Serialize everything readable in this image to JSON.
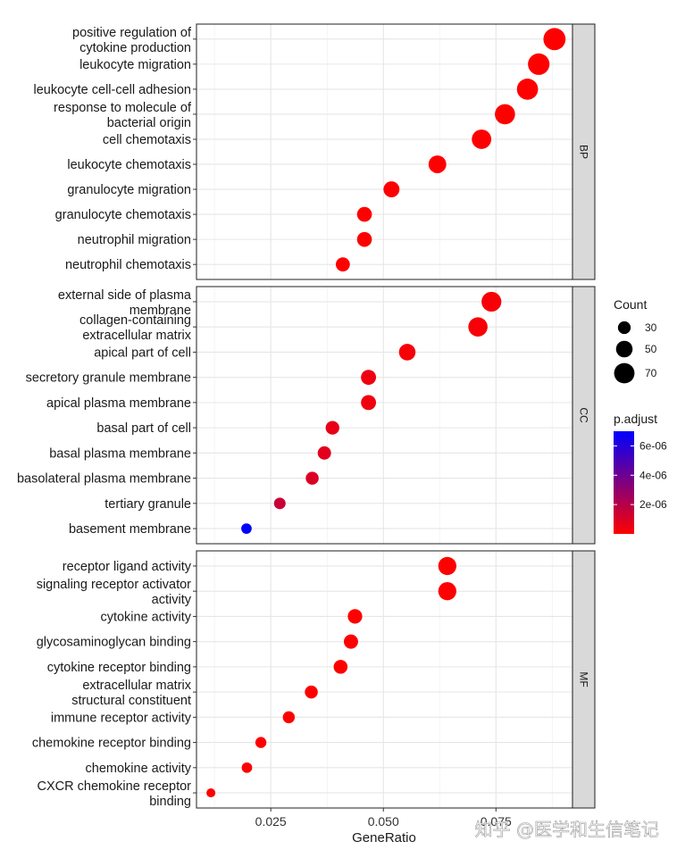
{
  "chart_data": {
    "type": "scatter",
    "title": "",
    "xlabel": "GeneRatio",
    "ylabel": "",
    "xlim": [
      0.0085,
      0.092
    ],
    "x_ticks": [
      0.025,
      0.05,
      0.075
    ],
    "x_tick_labels": [
      "0.025",
      "0.050",
      "0.075"
    ],
    "size_legend": {
      "title": "Count",
      "values": [
        30,
        50,
        70
      ],
      "labels": [
        "30",
        "50",
        "70"
      ]
    },
    "color_legend": {
      "title": "p.adjust",
      "low_color": "#ff0000",
      "high_color": "#0000ff",
      "range": [
        1e-10,
        7e-06
      ],
      "ticks": [
        2e-06,
        4e-06,
        6e-06
      ],
      "tick_labels": [
        "2e-06",
        "4e-06",
        "6e-06"
      ]
    },
    "facets": [
      {
        "name": "BP",
        "terms": [
          {
            "label": [
              "positive regulation of",
              "cytokine production"
            ],
            "gene_ratio": 0.088,
            "count": 79,
            "p_adjust": 1e-10
          },
          {
            "label": [
              "leukocyte migration"
            ],
            "gene_ratio": 0.0845,
            "count": 76,
            "p_adjust": 1e-10
          },
          {
            "label": [
              "leukocyte cell-cell adhesion"
            ],
            "gene_ratio": 0.082,
            "count": 74,
            "p_adjust": 1e-10
          },
          {
            "label": [
              "response to molecule of",
              "bacterial origin"
            ],
            "gene_ratio": 0.077,
            "count": 69,
            "p_adjust": 1e-10
          },
          {
            "label": [
              "cell chemotaxis"
            ],
            "gene_ratio": 0.0718,
            "count": 65,
            "p_adjust": 1e-10
          },
          {
            "label": [
              "leukocyte chemotaxis"
            ],
            "gene_ratio": 0.062,
            "count": 56,
            "p_adjust": 1e-10
          },
          {
            "label": [
              "granulocyte migration"
            ],
            "gene_ratio": 0.0518,
            "count": 47,
            "p_adjust": 1e-10
          },
          {
            "label": [
              "granulocyte chemotaxis"
            ],
            "gene_ratio": 0.0458,
            "count": 41,
            "p_adjust": 1e-10
          },
          {
            "label": [
              "neutrophil migration"
            ],
            "gene_ratio": 0.0458,
            "count": 41,
            "p_adjust": 1e-10
          },
          {
            "label": [
              "neutrophil chemotaxis"
            ],
            "gene_ratio": 0.041,
            "count": 37,
            "p_adjust": 1e-10
          }
        ]
      },
      {
        "name": "CC",
        "terms": [
          {
            "label": [
              "external side of plasma",
              "membrane"
            ],
            "gene_ratio": 0.074,
            "count": 67,
            "p_adjust": 2e-07
          },
          {
            "label": [
              "collagen-containing",
              "extracellular matrix"
            ],
            "gene_ratio": 0.071,
            "count": 64,
            "p_adjust": 2e-07
          },
          {
            "label": [
              "apical part of cell"
            ],
            "gene_ratio": 0.0553,
            "count": 50,
            "p_adjust": 2e-07
          },
          {
            "label": [
              "secretory granule membrane"
            ],
            "gene_ratio": 0.0467,
            "count": 42,
            "p_adjust": 4e-07
          },
          {
            "label": [
              "apical plasma membrane"
            ],
            "gene_ratio": 0.0467,
            "count": 42,
            "p_adjust": 4e-07
          },
          {
            "label": [
              "basal part of cell"
            ],
            "gene_ratio": 0.0387,
            "count": 35,
            "p_adjust": 6e-07
          },
          {
            "label": [
              "basal plasma membrane"
            ],
            "gene_ratio": 0.0369,
            "count": 33,
            "p_adjust": 8e-07
          },
          {
            "label": [
              "basolateral plasma membrane"
            ],
            "gene_ratio": 0.0342,
            "count": 31,
            "p_adjust": 1e-06
          },
          {
            "label": [
              "tertiary granule"
            ],
            "gene_ratio": 0.027,
            "count": 24,
            "p_adjust": 1.5e-06
          },
          {
            "label": [
              "basement membrane"
            ],
            "gene_ratio": 0.0196,
            "count": 18,
            "p_adjust": 7e-06
          }
        ]
      },
      {
        "name": "MF",
        "terms": [
          {
            "label": [
              "receptor ligand activity"
            ],
            "gene_ratio": 0.0642,
            "count": 58,
            "p_adjust": 1e-10
          },
          {
            "label": [
              "signaling receptor activator",
              "activity"
            ],
            "gene_ratio": 0.0642,
            "count": 58,
            "p_adjust": 1e-10
          },
          {
            "label": [
              "cytokine activity"
            ],
            "gene_ratio": 0.0437,
            "count": 39,
            "p_adjust": 1e-10
          },
          {
            "label": [
              "glycosaminoglycan binding"
            ],
            "gene_ratio": 0.0428,
            "count": 38,
            "p_adjust": 1e-10
          },
          {
            "label": [
              "cytokine receptor binding"
            ],
            "gene_ratio": 0.0405,
            "count": 36,
            "p_adjust": 1e-10
          },
          {
            "label": [
              "extracellular matrix",
              "structural constituent"
            ],
            "gene_ratio": 0.034,
            "count": 31,
            "p_adjust": 1e-10
          },
          {
            "label": [
              "immune receptor activity"
            ],
            "gene_ratio": 0.029,
            "count": 26,
            "p_adjust": 1e-10
          },
          {
            "label": [
              "chemokine receptor binding"
            ],
            "gene_ratio": 0.0228,
            "count": 21,
            "p_adjust": 1e-10
          },
          {
            "label": [
              "chemokine activity"
            ],
            "gene_ratio": 0.0197,
            "count": 18,
            "p_adjust": 1e-10
          },
          {
            "label": [
              "CXCR chemokine receptor",
              "binding"
            ],
            "gene_ratio": 0.0117,
            "count": 10,
            "p_adjust": 1e-10
          }
        ]
      }
    ]
  },
  "watermark": "知乎 @医学和生信笔记"
}
